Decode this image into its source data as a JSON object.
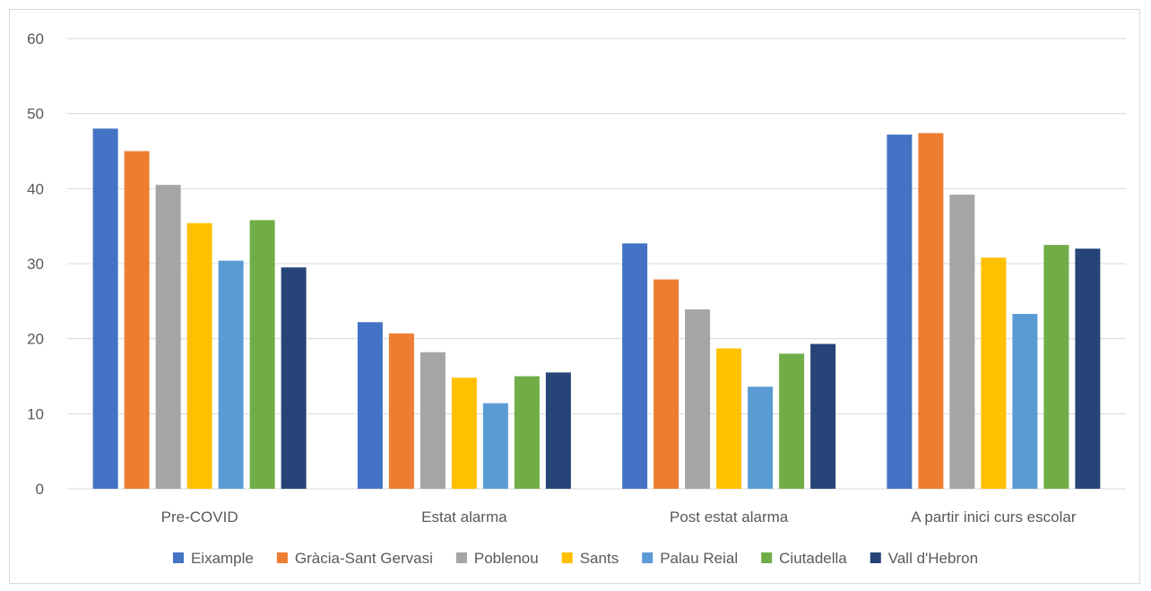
{
  "chart_data": {
    "type": "bar",
    "title": "",
    "xlabel": "",
    "ylabel": "",
    "ylim": [
      0,
      60
    ],
    "yticks": [
      0,
      10,
      20,
      30,
      40,
      50,
      60
    ],
    "grid": true,
    "legend_position": "bottom",
    "categories": [
      "Pre-COVID",
      "Estat alarma",
      "Post estat alarma",
      "A partir inici curs escolar"
    ],
    "series": [
      {
        "name": "Eixample",
        "color": "#4472C4",
        "values": [
          48.0,
          22.2,
          32.7,
          47.2
        ]
      },
      {
        "name": "Gràcia-Sant Gervasi",
        "color": "#ED7D31",
        "values": [
          45.0,
          20.7,
          27.9,
          47.4
        ]
      },
      {
        "name": "Poblenou",
        "color": "#A5A5A5",
        "values": [
          40.5,
          18.2,
          23.9,
          39.2
        ]
      },
      {
        "name": "Sants",
        "color": "#FFC000",
        "values": [
          35.4,
          14.8,
          18.7,
          30.8
        ]
      },
      {
        "name": "Palau Reial",
        "color": "#5B9BD5",
        "values": [
          30.4,
          11.4,
          13.6,
          23.3
        ]
      },
      {
        "name": "Ciutadella",
        "color": "#70AD47",
        "values": [
          35.8,
          15.0,
          18.0,
          32.5
        ]
      },
      {
        "name": "Vall d'Hebron",
        "color": "#264478",
        "values": [
          29.5,
          15.5,
          19.3,
          32.0
        ]
      }
    ]
  }
}
